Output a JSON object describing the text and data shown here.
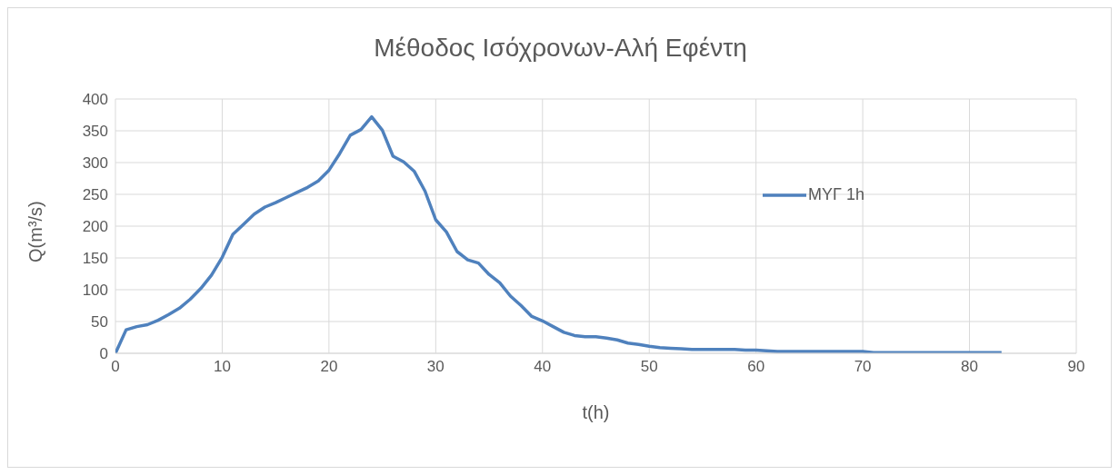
{
  "chart_data": {
    "type": "line",
    "title": "Μέθοδος Ισόχρονων-Αλή Εφέντη",
    "xlabel": "t(h)",
    "ylabel": "Q(m³/s)",
    "x": [
      0,
      1,
      2,
      3,
      4,
      5,
      6,
      7,
      8,
      9,
      10,
      11,
      12,
      13,
      14,
      15,
      16,
      17,
      18,
      19,
      20,
      21,
      22,
      23,
      24,
      25,
      26,
      27,
      28,
      29,
      30,
      31,
      32,
      33,
      34,
      35,
      36,
      37,
      38,
      39,
      40,
      41,
      42,
      43,
      44,
      45,
      46,
      47,
      48,
      49,
      50,
      51,
      52,
      53,
      54,
      55,
      56,
      57,
      58,
      59,
      60,
      61,
      62,
      63,
      64,
      65,
      66,
      67,
      68,
      69,
      70,
      71,
      72,
      73,
      74,
      75,
      76,
      77,
      78,
      79,
      80,
      81,
      82,
      83
    ],
    "series": [
      {
        "name": "ΜΥΓ 1h",
        "color": "#4f81bd",
        "values": [
          0,
          37,
          42,
          45,
          52,
          61,
          71,
          85,
          102,
          123,
          151,
          187,
          203,
          219,
          230,
          237,
          245,
          253,
          261,
          271,
          288,
          314,
          343,
          352,
          372,
          351,
          310,
          301,
          286,
          255,
          210,
          191,
          160,
          147,
          142,
          124,
          111,
          90,
          75,
          58,
          51,
          42,
          33,
          28,
          26,
          26,
          24,
          21,
          16,
          14,
          11,
          9,
          8,
          7,
          6,
          6,
          6,
          6,
          6,
          5,
          5,
          4,
          3,
          3,
          3,
          3,
          3,
          3,
          3,
          3,
          3,
          1,
          1,
          1,
          1,
          1,
          1,
          1,
          1,
          1,
          1,
          1,
          1,
          1
        ]
      }
    ],
    "xlim": [
      0,
      90
    ],
    "xticks": [
      0,
      10,
      20,
      30,
      40,
      50,
      60,
      70,
      80,
      90
    ],
    "ylim": [
      0,
      400
    ],
    "yticks": [
      0,
      50,
      100,
      150,
      200,
      250,
      300,
      350,
      400
    ],
    "grid": true,
    "legend": "right",
    "marker": "none",
    "line_style": "solid"
  }
}
